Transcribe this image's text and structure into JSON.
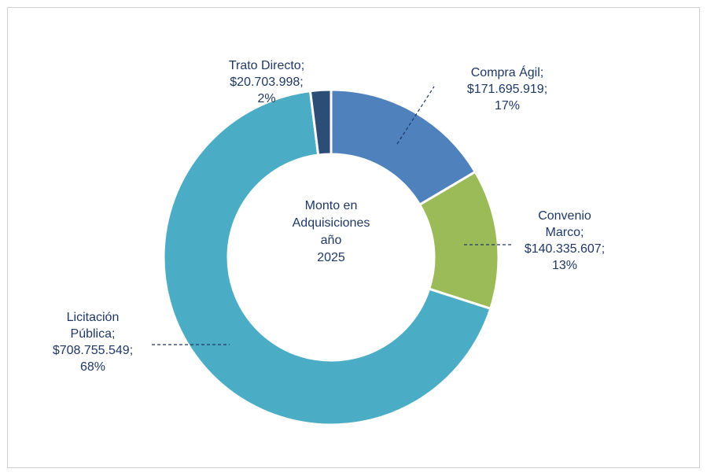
{
  "chart_data": {
    "type": "donut",
    "categories": [
      "Compra Ágil",
      "Convenio Marco",
      "Licitación Pública",
      "Trato Directo"
    ],
    "values": [
      171695919,
      140335607,
      708755549,
      20703998
    ],
    "value_labels": [
      "$171.695.919",
      "$140.335.607",
      "$708.755.549",
      "$20.703.998"
    ],
    "percent_labels": [
      "17%",
      "13%",
      "68%",
      "2%"
    ],
    "separator": ";",
    "colors": [
      "#4f81bd",
      "#9bbb59",
      "#4bacc6",
      "#2c4d75"
    ],
    "center_label": [
      "Monto en",
      "Adquisiciones",
      "año",
      "2025"
    ]
  }
}
